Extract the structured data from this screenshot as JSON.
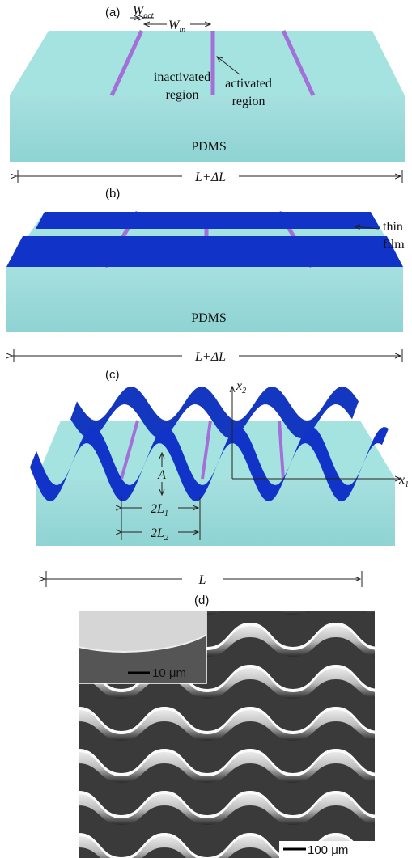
{
  "a": {
    "label": "(a)",
    "w_act": {
      "base": "W",
      "sub": "act"
    },
    "w_in": {
      "base": "W",
      "sub": "in"
    },
    "inactivated": [
      "inactivated",
      "region"
    ],
    "activated": [
      "activated",
      "region"
    ],
    "substrate": "PDMS",
    "length": "L+ΔL"
  },
  "b": {
    "label": "(b)",
    "film": [
      "thin",
      "film"
    ],
    "substrate": "PDMS",
    "length": "L+ΔL"
  },
  "c": {
    "label": "(c)",
    "x2": {
      "base": "x",
      "sub": "2"
    },
    "x1": {
      "base": "x",
      "sub": "1"
    },
    "amplitude": "A",
    "l1": {
      "base": "2L",
      "sub": "1"
    },
    "l2": {
      "base": "2L",
      "sub": "2"
    },
    "length": "L"
  },
  "d": {
    "label": "(d)",
    "inset_scale": "10 μm",
    "scale": "100 μm"
  }
}
